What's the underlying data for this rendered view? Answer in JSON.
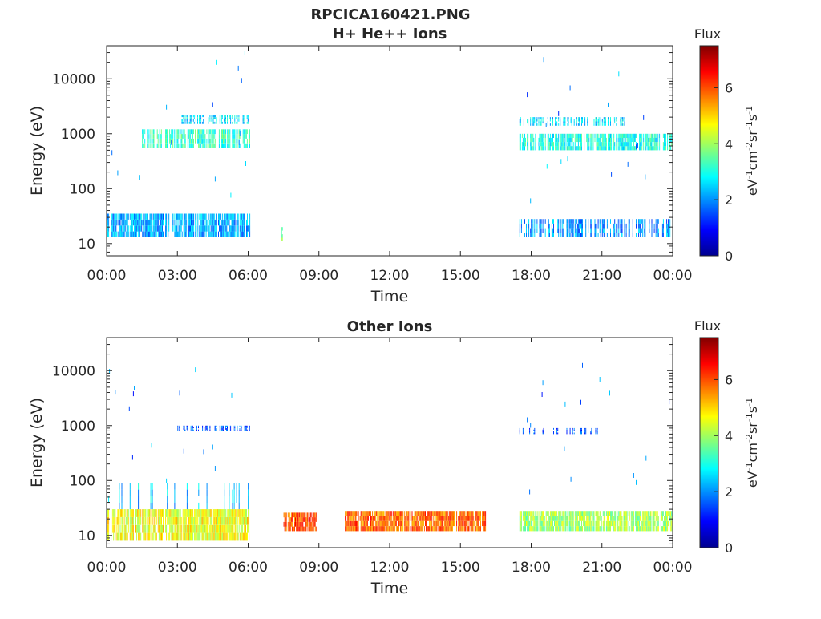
{
  "figure": {
    "title_line1": "RPCICA160421.PNG"
  },
  "chart_data": [
    {
      "type": "heatmap",
      "title": "H+ He++ Ions",
      "xlabel": "Time",
      "ylabel": "Energy (eV)",
      "x_tick_labels": [
        "00:00",
        "03:00",
        "06:00",
        "09:00",
        "12:00",
        "15:00",
        "18:00",
        "21:00",
        "00:00"
      ],
      "x_ticks_hours": [
        0,
        3,
        6,
        9,
        12,
        15,
        18,
        21,
        24
      ],
      "xlim_hours": [
        0,
        24
      ],
      "y_scale": "log",
      "ylim": [
        6,
        40000
      ],
      "y_ticks": [
        10,
        100,
        1000,
        10000
      ],
      "y_tick_labels": [
        "10",
        "100",
        "1000",
        "10000"
      ],
      "colorbar": {
        "title": "Flux",
        "unit_label": "eV-1cm-2sr-1s-1",
        "range": [
          0,
          7.5
        ],
        "ticks": [
          0,
          2,
          4,
          6
        ],
        "tick_labels": [
          "0",
          "2",
          "4",
          "6"
        ],
        "colormap": "jet"
      },
      "regions": [
        {
          "t_start": 0,
          "t_end": 6.1,
          "e_low": 13,
          "e_high": 35,
          "flux": 2.2,
          "density": 0.85
        },
        {
          "t_start": 1.5,
          "t_end": 6.1,
          "e_low": 550,
          "e_high": 1200,
          "flux": 3.2,
          "density": 0.7
        },
        {
          "t_start": 3.0,
          "t_end": 6.1,
          "e_low": 1500,
          "e_high": 2200,
          "flux": 2.6,
          "density": 0.5
        },
        {
          "t_start": 7.4,
          "t_end": 7.5,
          "e_low": 11,
          "e_high": 20,
          "flux": 3.6,
          "density": 0.6
        },
        {
          "t_start": 17.5,
          "t_end": 24,
          "e_low": 13,
          "e_high": 28,
          "flux": 2.0,
          "density": 0.55
        },
        {
          "t_start": 17.5,
          "t_end": 24,
          "e_low": 500,
          "e_high": 1000,
          "flux": 3.0,
          "density": 0.75
        },
        {
          "t_start": 17.5,
          "t_end": 22.0,
          "e_low": 1400,
          "e_high": 2000,
          "flux": 2.6,
          "density": 0.5
        },
        {
          "t_start": 0,
          "t_end": 6.1,
          "e_low": 30,
          "e_high": 30000,
          "flux": 2.0,
          "density": 0.015
        },
        {
          "t_start": 17.5,
          "t_end": 24,
          "e_low": 30,
          "e_high": 30000,
          "flux": 2.0,
          "density": 0.012
        }
      ]
    },
    {
      "type": "heatmap",
      "title": "Other Ions",
      "xlabel": "Time",
      "ylabel": "Energy (eV)",
      "x_tick_labels": [
        "00:00",
        "03:00",
        "06:00",
        "09:00",
        "12:00",
        "15:00",
        "18:00",
        "21:00",
        "00:00"
      ],
      "x_ticks_hours": [
        0,
        3,
        6,
        9,
        12,
        15,
        18,
        21,
        24
      ],
      "xlim_hours": [
        0,
        24
      ],
      "y_scale": "log",
      "ylim": [
        6,
        40000
      ],
      "y_ticks": [
        10,
        100,
        1000,
        10000
      ],
      "y_tick_labels": [
        "10",
        "100",
        "1000",
        "10000"
      ],
      "colorbar": {
        "title": "Flux",
        "unit_label": "eV-1cm-2sr-1s-1",
        "range": [
          0,
          7.5
        ],
        "ticks": [
          0,
          2,
          4,
          6
        ],
        "tick_labels": [
          "0",
          "2",
          "4",
          "6"
        ],
        "colormap": "jet"
      },
      "regions": [
        {
          "t_start": 0,
          "t_end": 6.1,
          "e_low": 8,
          "e_high": 30,
          "flux": 4.6,
          "density": 0.9
        },
        {
          "t_start": 0,
          "t_end": 6.1,
          "e_low": 30,
          "e_high": 90,
          "flux": 2.4,
          "density": 0.15
        },
        {
          "t_start": 3.0,
          "t_end": 6.1,
          "e_low": 800,
          "e_high": 1000,
          "flux": 1.5,
          "density": 0.5
        },
        {
          "t_start": 7.5,
          "t_end": 8.9,
          "e_low": 12,
          "e_high": 26,
          "flux": 6.0,
          "density": 0.95
        },
        {
          "t_start": 10.1,
          "t_end": 16.1,
          "e_low": 12,
          "e_high": 28,
          "flux": 5.8,
          "density": 0.95
        },
        {
          "t_start": 17.5,
          "t_end": 24,
          "e_low": 12,
          "e_high": 28,
          "flux": 4.0,
          "density": 0.85
        },
        {
          "t_start": 17.5,
          "t_end": 21.0,
          "e_low": 700,
          "e_high": 900,
          "flux": 1.5,
          "density": 0.2
        },
        {
          "t_start": 0,
          "t_end": 6.1,
          "e_low": 90,
          "e_high": 15000,
          "flux": 1.8,
          "density": 0.012
        },
        {
          "t_start": 17.5,
          "t_end": 24,
          "e_low": 40,
          "e_high": 15000,
          "flux": 1.8,
          "density": 0.01
        }
      ]
    }
  ]
}
